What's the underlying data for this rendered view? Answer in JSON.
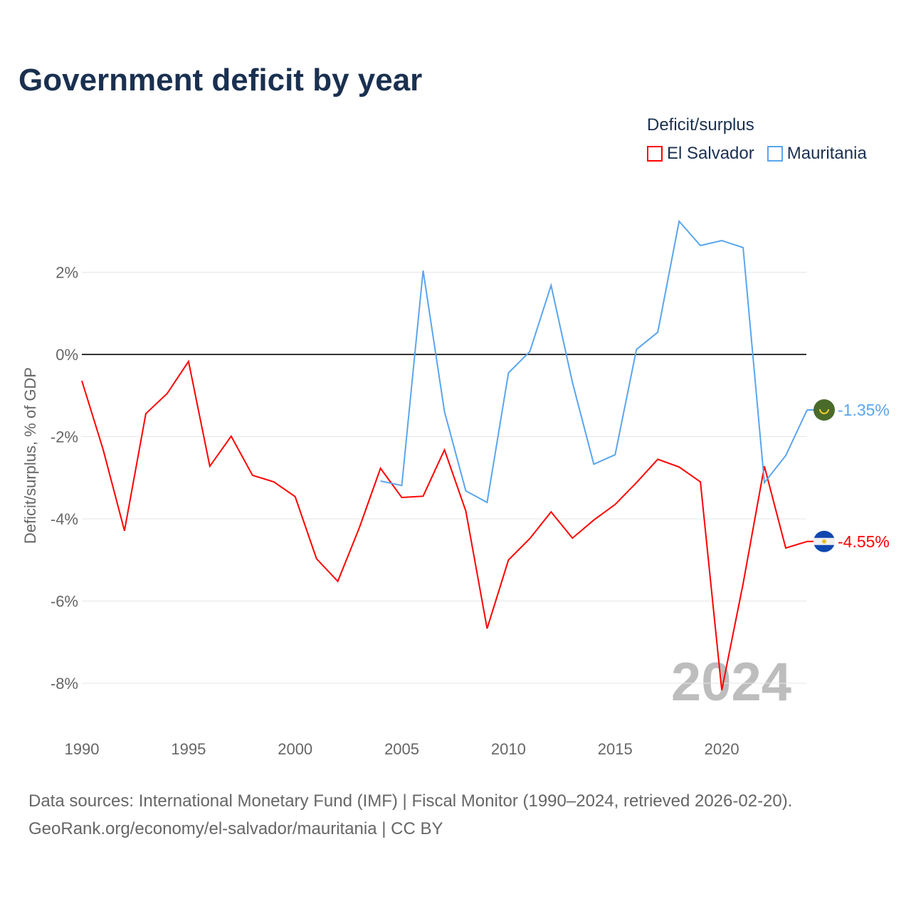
{
  "chart_data": {
    "type": "line",
    "title": "Government deficit by year",
    "xlabel": "",
    "ylabel": "Deficit/surplus, % of GDP",
    "xlim": [
      1990,
      2024
    ],
    "ylim": [
      -9,
      3.5
    ],
    "x_ticks": [
      "1990",
      "1995",
      "2000",
      "2005",
      "2010",
      "2015",
      "2020"
    ],
    "y_ticks": [
      {
        "v": 2,
        "label": "2%"
      },
      {
        "v": 0,
        "label": "0%"
      },
      {
        "v": -2,
        "label": "-2%"
      },
      {
        "v": -4,
        "label": "-4%"
      },
      {
        "v": -6,
        "label": "-6%"
      },
      {
        "v": -8,
        "label": "-8%"
      }
    ],
    "legend_title": "Deficit/surplus",
    "legend_position": "top-right",
    "watermark_year": "2024",
    "series": [
      {
        "name": "El Salvador",
        "color": "#ff0000",
        "start_year": 1990,
        "end_label": "-4.55%",
        "values": [
          -0.64,
          -2.32,
          -4.29,
          -1.44,
          -0.95,
          -0.17,
          -2.72,
          -1.99,
          -2.94,
          -3.1,
          -3.46,
          -4.97,
          -5.52,
          -4.23,
          -2.77,
          -3.48,
          -3.45,
          -2.32,
          -3.81,
          -6.67,
          -5.0,
          -4.48,
          -3.83,
          -4.47,
          -4.03,
          -3.65,
          -3.12,
          -2.55,
          -2.74,
          -3.1,
          -8.17,
          -5.58,
          -2.72,
          -4.71,
          -4.55
        ]
      },
      {
        "name": "Mauritania",
        "color": "#5aa5ee",
        "start_year": 2004,
        "end_label": "-1.35%",
        "values": [
          -3.08,
          -3.19,
          2.04,
          -1.39,
          -3.32,
          -3.6,
          -0.45,
          0.07,
          1.68,
          -0.68,
          -2.67,
          -2.44,
          0.12,
          0.54,
          3.24,
          2.65,
          2.77,
          2.6,
          -3.12,
          -2.46,
          -1.35
        ]
      }
    ]
  },
  "footer": {
    "line1": "Data sources: International Monetary Fund (IMF) | Fiscal Monitor (1990–2024, retrieved 2026-02-20).",
    "line2": "GeoRank.org/economy/el-salvador/mauritania | CC BY"
  }
}
